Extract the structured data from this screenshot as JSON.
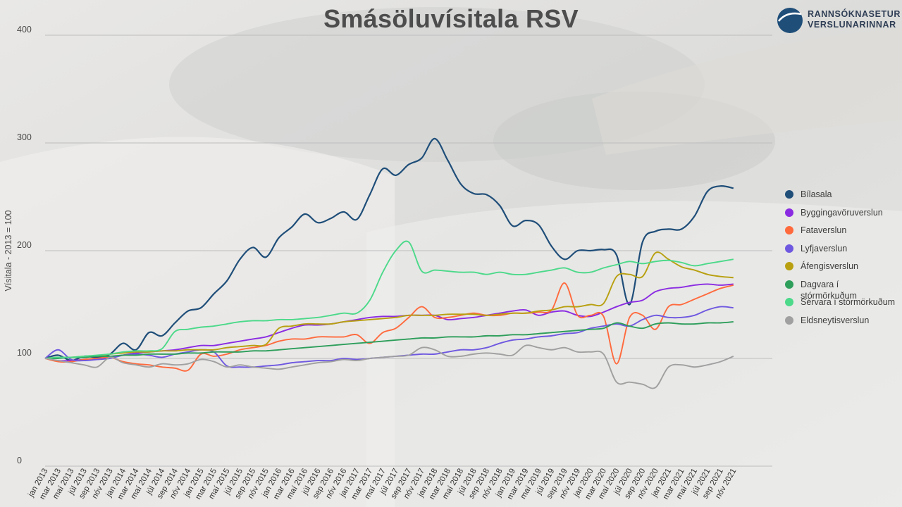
{
  "chart_data": {
    "type": "line",
    "title": "Smásöluvísitala RSV",
    "ylabel": "Vísitala - 2013 = 100",
    "xlabel": "",
    "ylim": [
      0,
      400
    ],
    "yticks": [
      0,
      100,
      200,
      300,
      400
    ],
    "legend_position": "right",
    "categories": [
      "jan 2013",
      "mar 2013",
      "maí 2013",
      "júl 2013",
      "sep 2013",
      "nóv 2013",
      "jan 2014",
      "mar 2014",
      "maí 2014",
      "júl 2014",
      "sep 2014",
      "nóv 2014",
      "jan 2015",
      "mar 2015",
      "maí 2015",
      "júl 2015",
      "sep 2015",
      "nóv 2015",
      "jan 2016",
      "mar 2016",
      "maí 2016",
      "júl 2016",
      "sep 2016",
      "nóv 2016",
      "jan 2017",
      "mar 2017",
      "maí 2017",
      "júl 2017",
      "sep 2017",
      "nóv 2017",
      "jan 2018",
      "mar 2018",
      "maí 2018",
      "júl 2018",
      "sep 2018",
      "nóv 2018",
      "jan 2019",
      "mar 2019",
      "maí 2019",
      "júl 2019",
      "sep 2019",
      "nóv 2019",
      "jan 2020",
      "mar 2020",
      "maí 2020",
      "júl 2020",
      "sep 2020",
      "nóv 2020",
      "jan 2021",
      "mar 2021",
      "maí 2021",
      "júl 2021",
      "sep 2021",
      "nóv 2021"
    ],
    "series": [
      {
        "name": "Bílasala",
        "color": "#1f4e79",
        "values": [
          100,
          103,
          98,
          102,
          101,
          104,
          114,
          108,
          124,
          121,
          133,
          144,
          147,
          160,
          172,
          192,
          203,
          194,
          212,
          222,
          234,
          226,
          230,
          236,
          229,
          252,
          276,
          270,
          280,
          286,
          304,
          284,
          262,
          253,
          252,
          242,
          223,
          228,
          224,
          204,
          192,
          200,
          200,
          201,
          196,
          150,
          208,
          218,
          220,
          220,
          232,
          255,
          260,
          258
        ]
      },
      {
        "name": "Byggingavöruverslun",
        "color": "#8a2be2",
        "values": [
          100,
          98,
          98,
          99,
          100,
          101,
          103,
          105,
          106,
          107,
          108,
          110,
          112,
          112,
          114,
          116,
          118,
          120,
          124,
          128,
          131,
          131,
          132,
          134,
          136,
          138,
          139,
          139,
          140,
          140,
          140,
          136,
          137,
          138,
          140,
          142,
          144,
          145,
          140,
          143,
          144,
          140,
          139,
          143,
          148,
          152,
          154,
          162,
          165,
          166,
          168,
          169,
          168,
          169
        ]
      },
      {
        "name": "Fataverslun",
        "color": "#ff6a3d",
        "values": [
          100,
          97,
          97,
          99,
          100,
          101,
          97,
          95,
          94,
          92,
          91,
          89,
          104,
          102,
          104,
          108,
          110,
          112,
          116,
          118,
          118,
          120,
          120,
          120,
          122,
          114,
          124,
          128,
          138,
          148,
          138,
          138,
          140,
          142,
          140,
          140,
          142,
          142,
          143,
          145,
          170,
          140,
          140,
          139,
          95,
          138,
          140,
          127,
          148,
          150,
          155,
          160,
          165,
          168
        ]
      },
      {
        "name": "Lyfjaverslun",
        "color": "#6f58e0",
        "values": [
          100,
          108,
          99,
          98,
          99,
          100,
          103,
          104,
          103,
          101,
          104,
          106,
          108,
          106,
          93,
          92,
          92,
          93,
          94,
          96,
          97,
          98,
          98,
          100,
          99,
          100,
          101,
          102,
          103,
          104,
          104,
          106,
          108,
          108,
          110,
          114,
          117,
          118,
          120,
          121,
          123,
          124,
          128,
          130,
          132,
          130,
          136,
          140,
          138,
          138,
          140,
          145,
          148,
          147
        ]
      },
      {
        "name": "Áfengisverslun",
        "color": "#b8a010",
        "values": [
          100,
          101,
          101,
          102,
          102,
          104,
          105,
          106,
          106,
          107,
          107,
          108,
          108,
          108,
          110,
          111,
          112,
          113,
          128,
          130,
          132,
          132,
          132,
          134,
          135,
          136,
          137,
          138,
          140,
          140,
          140,
          141,
          141,
          141,
          140,
          141,
          142,
          142,
          144,
          145,
          148,
          148,
          150,
          151,
          176,
          178,
          176,
          198,
          192,
          185,
          182,
          178,
          176,
          175
        ]
      },
      {
        "name": "Dagvara í stórmörkuðum",
        "color": "#2e9e5b",
        "values": [
          100,
          100,
          101,
          101,
          102,
          102,
          103,
          103,
          104,
          104,
          104,
          105,
          105,
          106,
          106,
          106,
          107,
          107,
          108,
          109,
          110,
          111,
          112,
          113,
          114,
          115,
          116,
          117,
          118,
          119,
          119,
          120,
          120,
          120,
          121,
          121,
          122,
          122,
          123,
          124,
          125,
          126,
          127,
          128,
          133,
          130,
          128,
          132,
          133,
          132,
          132,
          133,
          133,
          134
        ]
      },
      {
        "name": "Sérvara í stórmörkuðum",
        "color": "#4cd98a",
        "values": [
          100,
          101,
          101,
          102,
          103,
          104,
          106,
          107,
          107,
          109,
          125,
          127,
          129,
          130,
          132,
          134,
          135,
          135,
          136,
          136,
          137,
          138,
          140,
          142,
          142,
          154,
          180,
          200,
          208,
          181,
          182,
          181,
          180,
          180,
          178,
          180,
          178,
          178,
          180,
          182,
          184,
          180,
          180,
          184,
          187,
          190,
          188,
          190,
          191,
          189,
          186,
          188,
          190,
          192
        ]
      },
      {
        "name": "Eldsneytisverslun",
        "color": "#a0a0a0",
        "values": [
          100,
          98,
          96,
          94,
          92,
          101,
          96,
          94,
          92,
          95,
          94,
          95,
          99,
          97,
          92,
          94,
          92,
          91,
          90,
          92,
          94,
          96,
          97,
          99,
          98,
          100,
          101,
          102,
          103,
          110,
          108,
          102,
          102,
          104,
          105,
          104,
          103,
          112,
          110,
          108,
          110,
          106,
          106,
          104,
          78,
          78,
          76,
          73,
          92,
          94,
          92,
          94,
          97,
          102
        ]
      }
    ]
  },
  "logo": {
    "line1": "RANNSÓKNASETUR",
    "line2": "VERSLUNARINNAR",
    "color": "#1f4e79"
  }
}
